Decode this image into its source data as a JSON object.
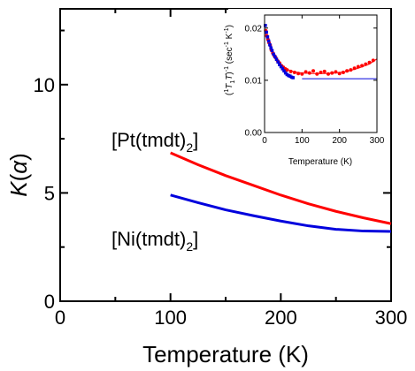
{
  "chart_data": [
    {
      "type": "line",
      "x": [
        100,
        125,
        150,
        175,
        200,
        225,
        250,
        275,
        300
      ],
      "series": [
        {
          "name": "[Pt(tmdt)2]",
          "label_main": "[Pt(tmdt)",
          "label_sub": "2",
          "label_tail": "]",
          "color": "#ff0000",
          "values": [
            6.85,
            6.3,
            5.8,
            5.35,
            4.9,
            4.5,
            4.15,
            3.85,
            3.58
          ]
        },
        {
          "name": "[Ni(tmdt)2]",
          "label_main": "[Ni(tmdt)",
          "label_sub": "2",
          "label_tail": "]",
          "color": "#0000dd",
          "values": [
            4.9,
            4.55,
            4.22,
            3.95,
            3.7,
            3.48,
            3.32,
            3.24,
            3.22
          ]
        }
      ],
      "xlabel": "Temperature (K)",
      "ylabel": "K(α)",
      "xlim": [
        0,
        300
      ],
      "ylim": [
        0,
        13.5
      ],
      "xticks": [
        0,
        100,
        200,
        300
      ],
      "yticks": [
        0,
        5,
        10
      ],
      "xtick_labels": [
        "0",
        "100",
        "200",
        "300"
      ],
      "ytick_labels": [
        "0",
        "5",
        "10"
      ],
      "grid": false
    },
    {
      "type": "scatter",
      "xlabel": "Temperature (K)",
      "ylabel": "(1/T1T)^-1 (sec^-1 K^-1)",
      "ylabel_parts": {
        "open": "(",
        "sup1": "1",
        "T1": "T",
        "T1sub": "1",
        "T": "T",
        "close": ")",
        "sup2": "-1",
        "unit": " (sec",
        "unitsup1": "-1",
        "unitK": " K",
        "unitsup2": "-1",
        "unitclose": ")"
      },
      "xlim": [
        0,
        300
      ],
      "ylim": [
        0.0,
        0.0225
      ],
      "xticks": [
        0,
        100,
        200,
        300
      ],
      "yticks": [
        0.0,
        0.01,
        0.02
      ],
      "xtick_labels": [
        "0",
        "100",
        "200",
        "300"
      ],
      "ytick_labels": [
        "0.00",
        "0.01",
        "0.02"
      ],
      "series": [
        {
          "color": "#ff0000",
          "points": [
            [
              3,
              0.0195
            ],
            [
              6,
              0.0185
            ],
            [
              9,
              0.0178
            ],
            [
              12,
              0.0172
            ],
            [
              15,
              0.0167
            ],
            [
              18,
              0.0158
            ],
            [
              22,
              0.0152
            ],
            [
              26,
              0.0147
            ],
            [
              30,
              0.0143
            ],
            [
              35,
              0.0137
            ],
            [
              40,
              0.0133
            ],
            [
              45,
              0.0128
            ],
            [
              50,
              0.0125
            ],
            [
              55,
              0.0122
            ],
            [
              60,
              0.012
            ],
            [
              70,
              0.0117
            ],
            [
              80,
              0.0115
            ],
            [
              90,
              0.0113
            ],
            [
              100,
              0.0112
            ],
            [
              110,
              0.0116
            ],
            [
              120,
              0.0114
            ],
            [
              130,
              0.0118
            ],
            [
              140,
              0.0112
            ],
            [
              150,
              0.0115
            ],
            [
              160,
              0.0117
            ],
            [
              170,
              0.0112
            ],
            [
              180,
              0.0114
            ],
            [
              190,
              0.0116
            ],
            [
              200,
              0.0113
            ],
            [
              210,
              0.0115
            ],
            [
              220,
              0.0118
            ],
            [
              230,
              0.012
            ],
            [
              240,
              0.0123
            ],
            [
              250,
              0.0126
            ],
            [
              260,
              0.0128
            ],
            [
              270,
              0.0131
            ],
            [
              280,
              0.0134
            ],
            [
              290,
              0.0138
            ]
          ],
          "fit_x": [
            0,
            20,
            40,
            60,
            80,
            100,
            130,
            160,
            190,
            220,
            250,
            280,
            300
          ],
          "fit_y": [
            0.0195,
            0.0155,
            0.0133,
            0.0121,
            0.0116,
            0.0114,
            0.0113,
            0.0113,
            0.0114,
            0.0117,
            0.0123,
            0.0131,
            0.0141
          ]
        },
        {
          "color": "#0000dd",
          "points": [
            [
              2,
              0.0205
            ],
            [
              5,
              0.0192
            ],
            [
              8,
              0.0183
            ],
            [
              11,
              0.0175
            ],
            [
              14,
              0.0168
            ],
            [
              17,
              0.0162
            ],
            [
              20,
              0.0157
            ],
            [
              24,
              0.015
            ],
            [
              28,
              0.0145
            ],
            [
              32,
              0.014
            ],
            [
              36,
              0.0135
            ],
            [
              40,
              0.013
            ],
            [
              44,
              0.0126
            ],
            [
              48,
              0.0122
            ],
            [
              52,
              0.0118
            ],
            [
              56,
              0.0114
            ],
            [
              60,
              0.0111
            ],
            [
              64,
              0.0109
            ],
            [
              68,
              0.0108
            ],
            [
              72,
              0.0106
            ],
            [
              76,
              0.0105
            ]
          ],
          "fit_x": [
            100,
            300
          ],
          "fit_y": [
            0.0103,
            0.0103
          ]
        }
      ]
    }
  ]
}
